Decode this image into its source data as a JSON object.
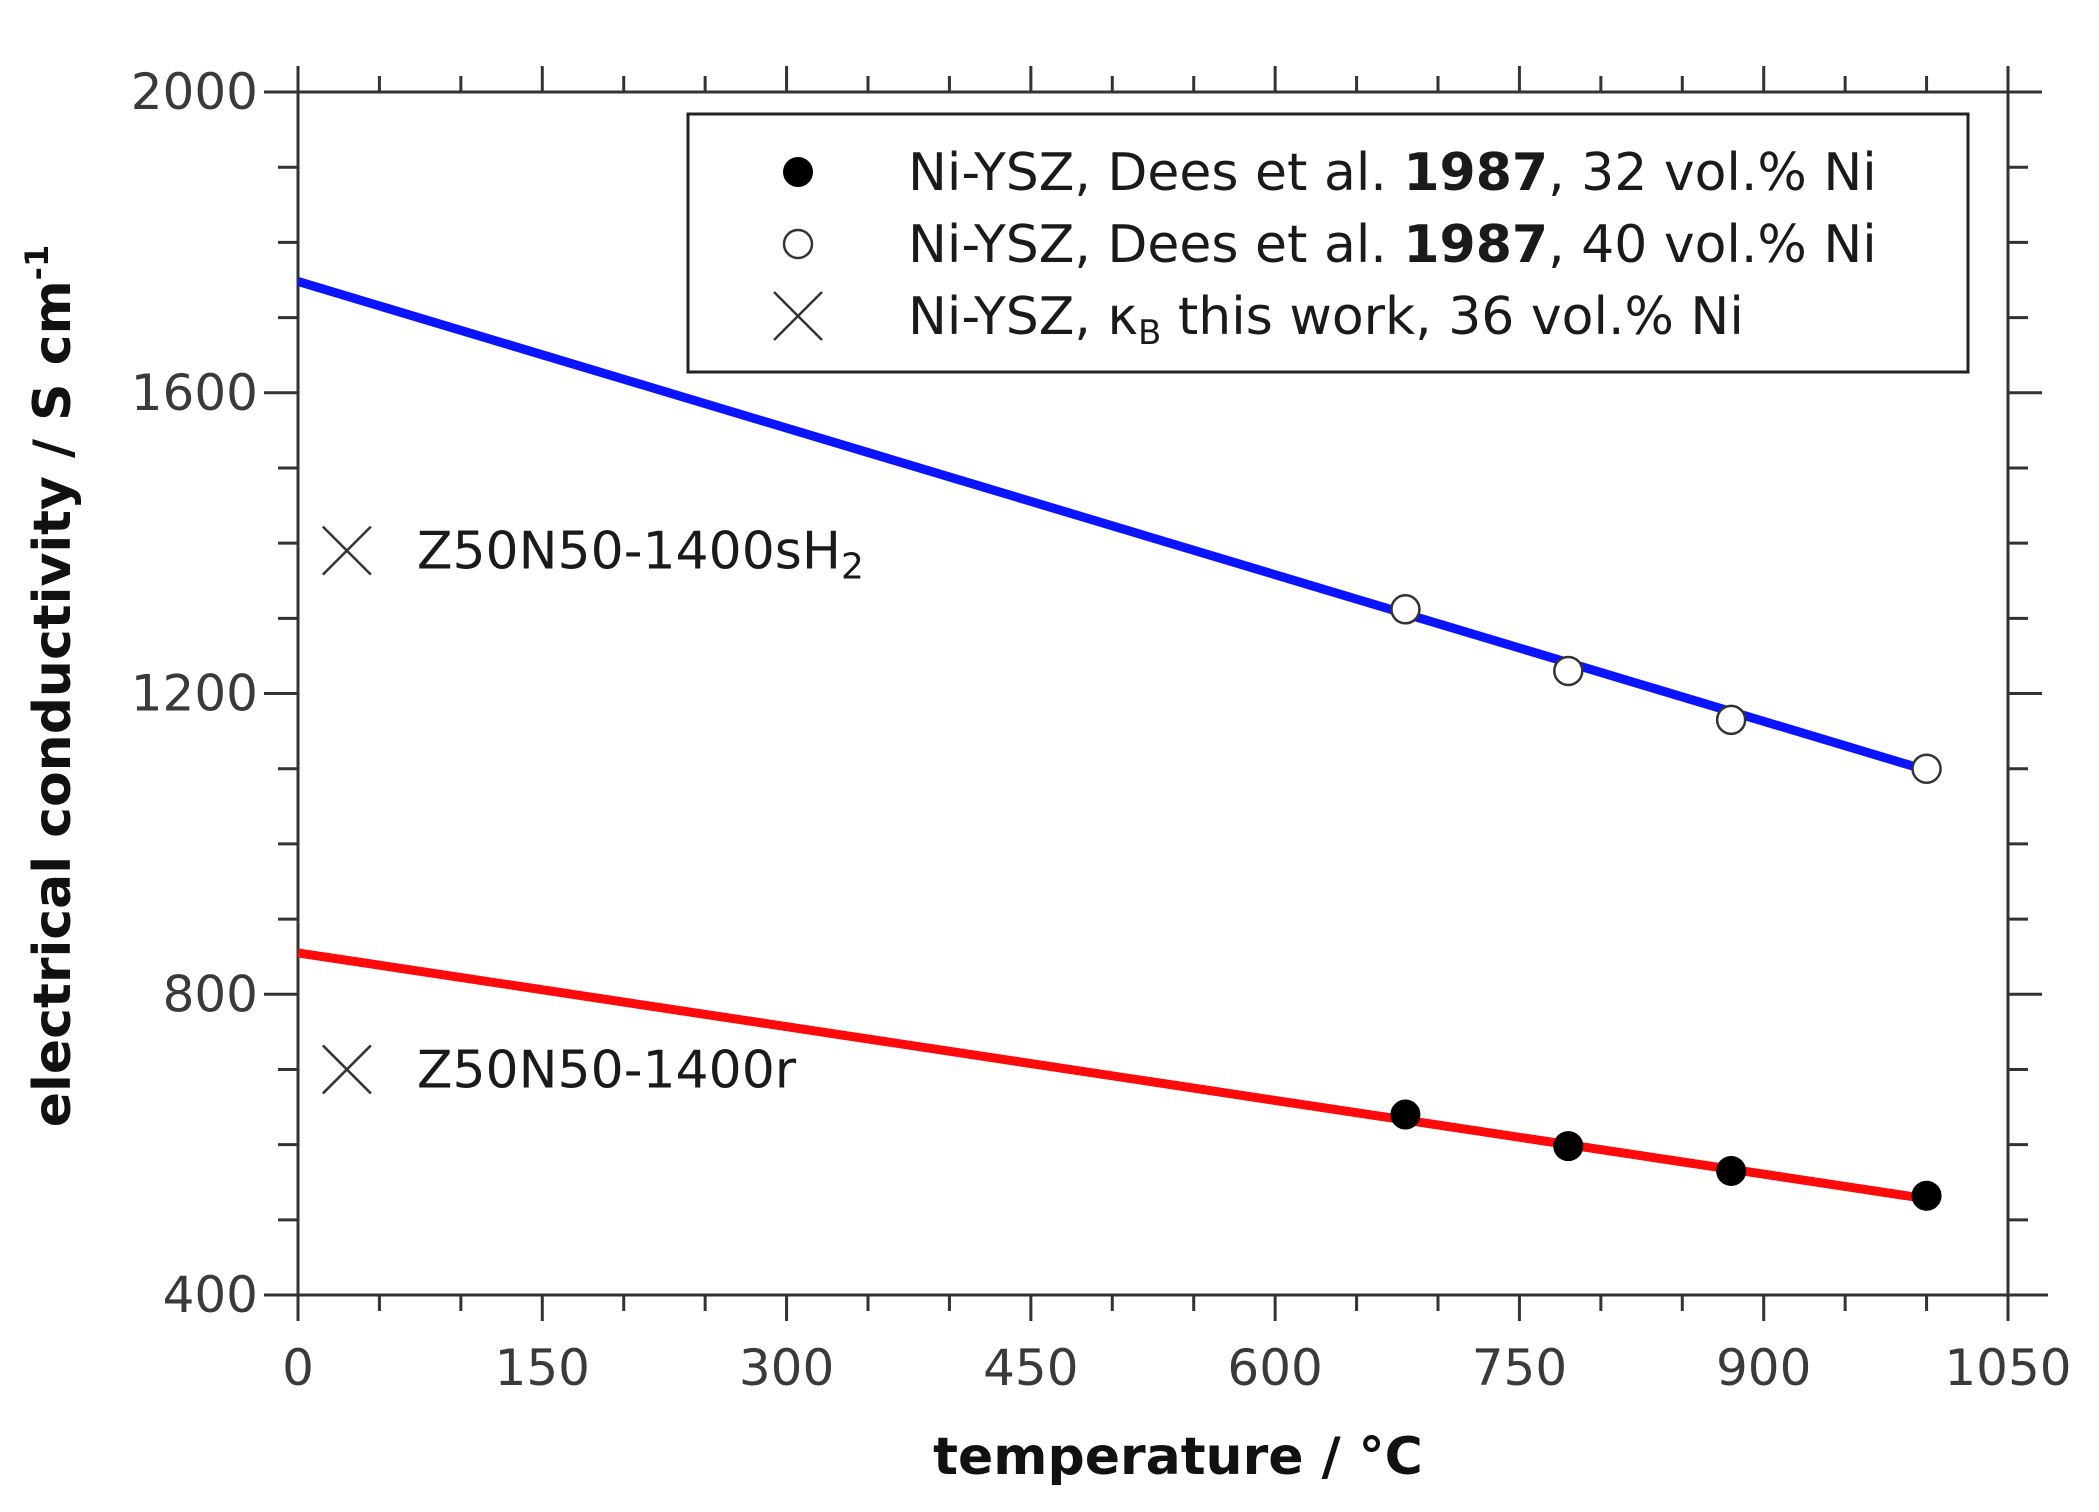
{
  "chart_data": {
    "type": "scatter",
    "xlabel": "temperature / °C",
    "ylabel_main": "electrical conductivity / S cm",
    "ylabel_sup": "-1",
    "xlim": [
      0,
      1050
    ],
    "ylim": [
      400,
      2000
    ],
    "x_ticks": [
      0,
      150,
      300,
      450,
      600,
      750,
      900,
      1050
    ],
    "y_ticks": [
      400,
      800,
      1200,
      1600,
      2000
    ],
    "x_tick_labels": [
      "0",
      "150",
      "300",
      "450",
      "600",
      "750",
      "900",
      "1050"
    ],
    "y_tick_labels": [
      "400",
      "800",
      "1200",
      "1600",
      "2000"
    ],
    "grid": false,
    "legend_position": "top-right",
    "series": [
      {
        "label_parts": [
          "Ni-YSZ, Dees et al. ",
          "1987",
          ", 32 vol.% Ni"
        ],
        "marker": "filled-circle",
        "points": [
          [
            680,
            640
          ],
          [
            780,
            598
          ],
          [
            880,
            565
          ],
          [
            1000,
            532
          ]
        ]
      },
      {
        "label_parts": [
          "Ni-YSZ, Dees et al. ",
          "1987",
          ", 40 vol.% Ni"
        ],
        "marker": "open-circle",
        "points": [
          [
            680,
            1312
          ],
          [
            780,
            1230
          ],
          [
            880,
            1165
          ],
          [
            1000,
            1100
          ]
        ]
      },
      {
        "label_parts": [
          "Ni-YSZ, κ",
          "B",
          " this work, 36 vol.% Ni"
        ],
        "marker": "cross",
        "points": [
          [
            30,
            1390
          ],
          [
            30,
            700
          ]
        ]
      }
    ],
    "fit_lines": [
      {
        "color": "#0a14ff",
        "x": [
          0,
          1000
        ],
        "y": [
          1748,
          1098
        ]
      },
      {
        "color": "#ff0a0a",
        "x": [
          0,
          1000
        ],
        "y": [
          855,
          528
        ]
      }
    ],
    "annotations": [
      {
        "text": "Z50N50-1400sH",
        "sub": "2",
        "x": 30,
        "y": 1390
      },
      {
        "text": "Z50N50-1400r",
        "sub": "",
        "x": 30,
        "y": 700
      }
    ]
  }
}
